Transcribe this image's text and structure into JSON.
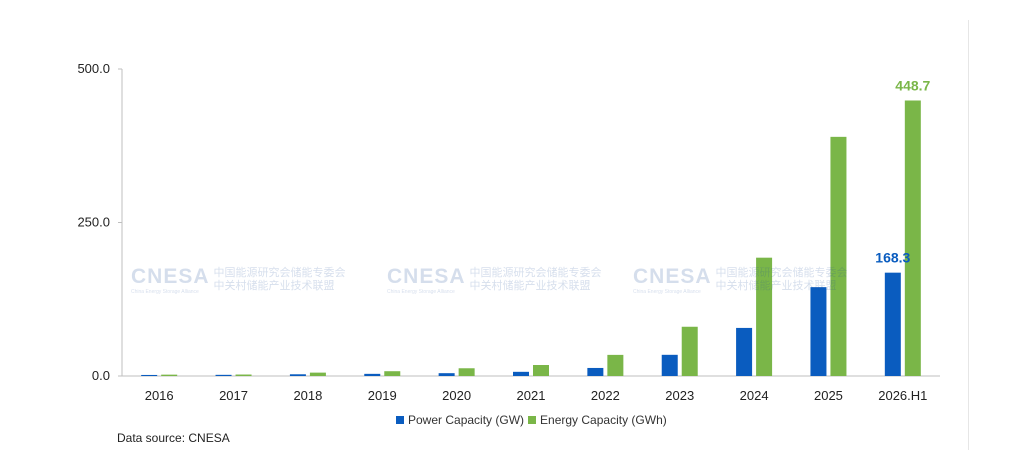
{
  "chart_data": {
    "type": "bar",
    "categories": [
      "2016",
      "2017",
      "2018",
      "2019",
      "2020",
      "2021",
      "2022",
      "2023",
      "2024",
      "2025",
      "2026.H1"
    ],
    "series": [
      {
        "name": "Power Capacity (GW)",
        "color": "#0a5cbf",
        "values": [
          1.7,
          1.9,
          2.8,
          3.5,
          4.6,
          6.8,
          13.1,
          34.5,
          78.3,
          144.7,
          168.3
        ]
      },
      {
        "name": "Energy Capacity (GWh)",
        "color": "#7ab648",
        "values": [
          2.2,
          2.4,
          5.5,
          7.8,
          12.6,
          17.9,
          34.4,
          80.2,
          192.7,
          389.5,
          448.7
        ]
      }
    ],
    "yticks": [
      "0.0",
      "250.0",
      "500.0"
    ],
    "ylim": [
      0,
      500
    ],
    "data_labels": [
      {
        "series": 0,
        "index": 10,
        "text": "168.3"
      },
      {
        "series": 1,
        "index": 10,
        "text": "448.7"
      }
    ],
    "legend_position": "bottom",
    "grid": false
  },
  "source": "Data source: CNESA",
  "watermark": {
    "logo": "CNESA",
    "logo_sub": "China Energy Storage Alliance",
    "cn_line1": "中国能源研究会储能专委会",
    "cn_line2": "中关村储能产业技术联盟"
  }
}
